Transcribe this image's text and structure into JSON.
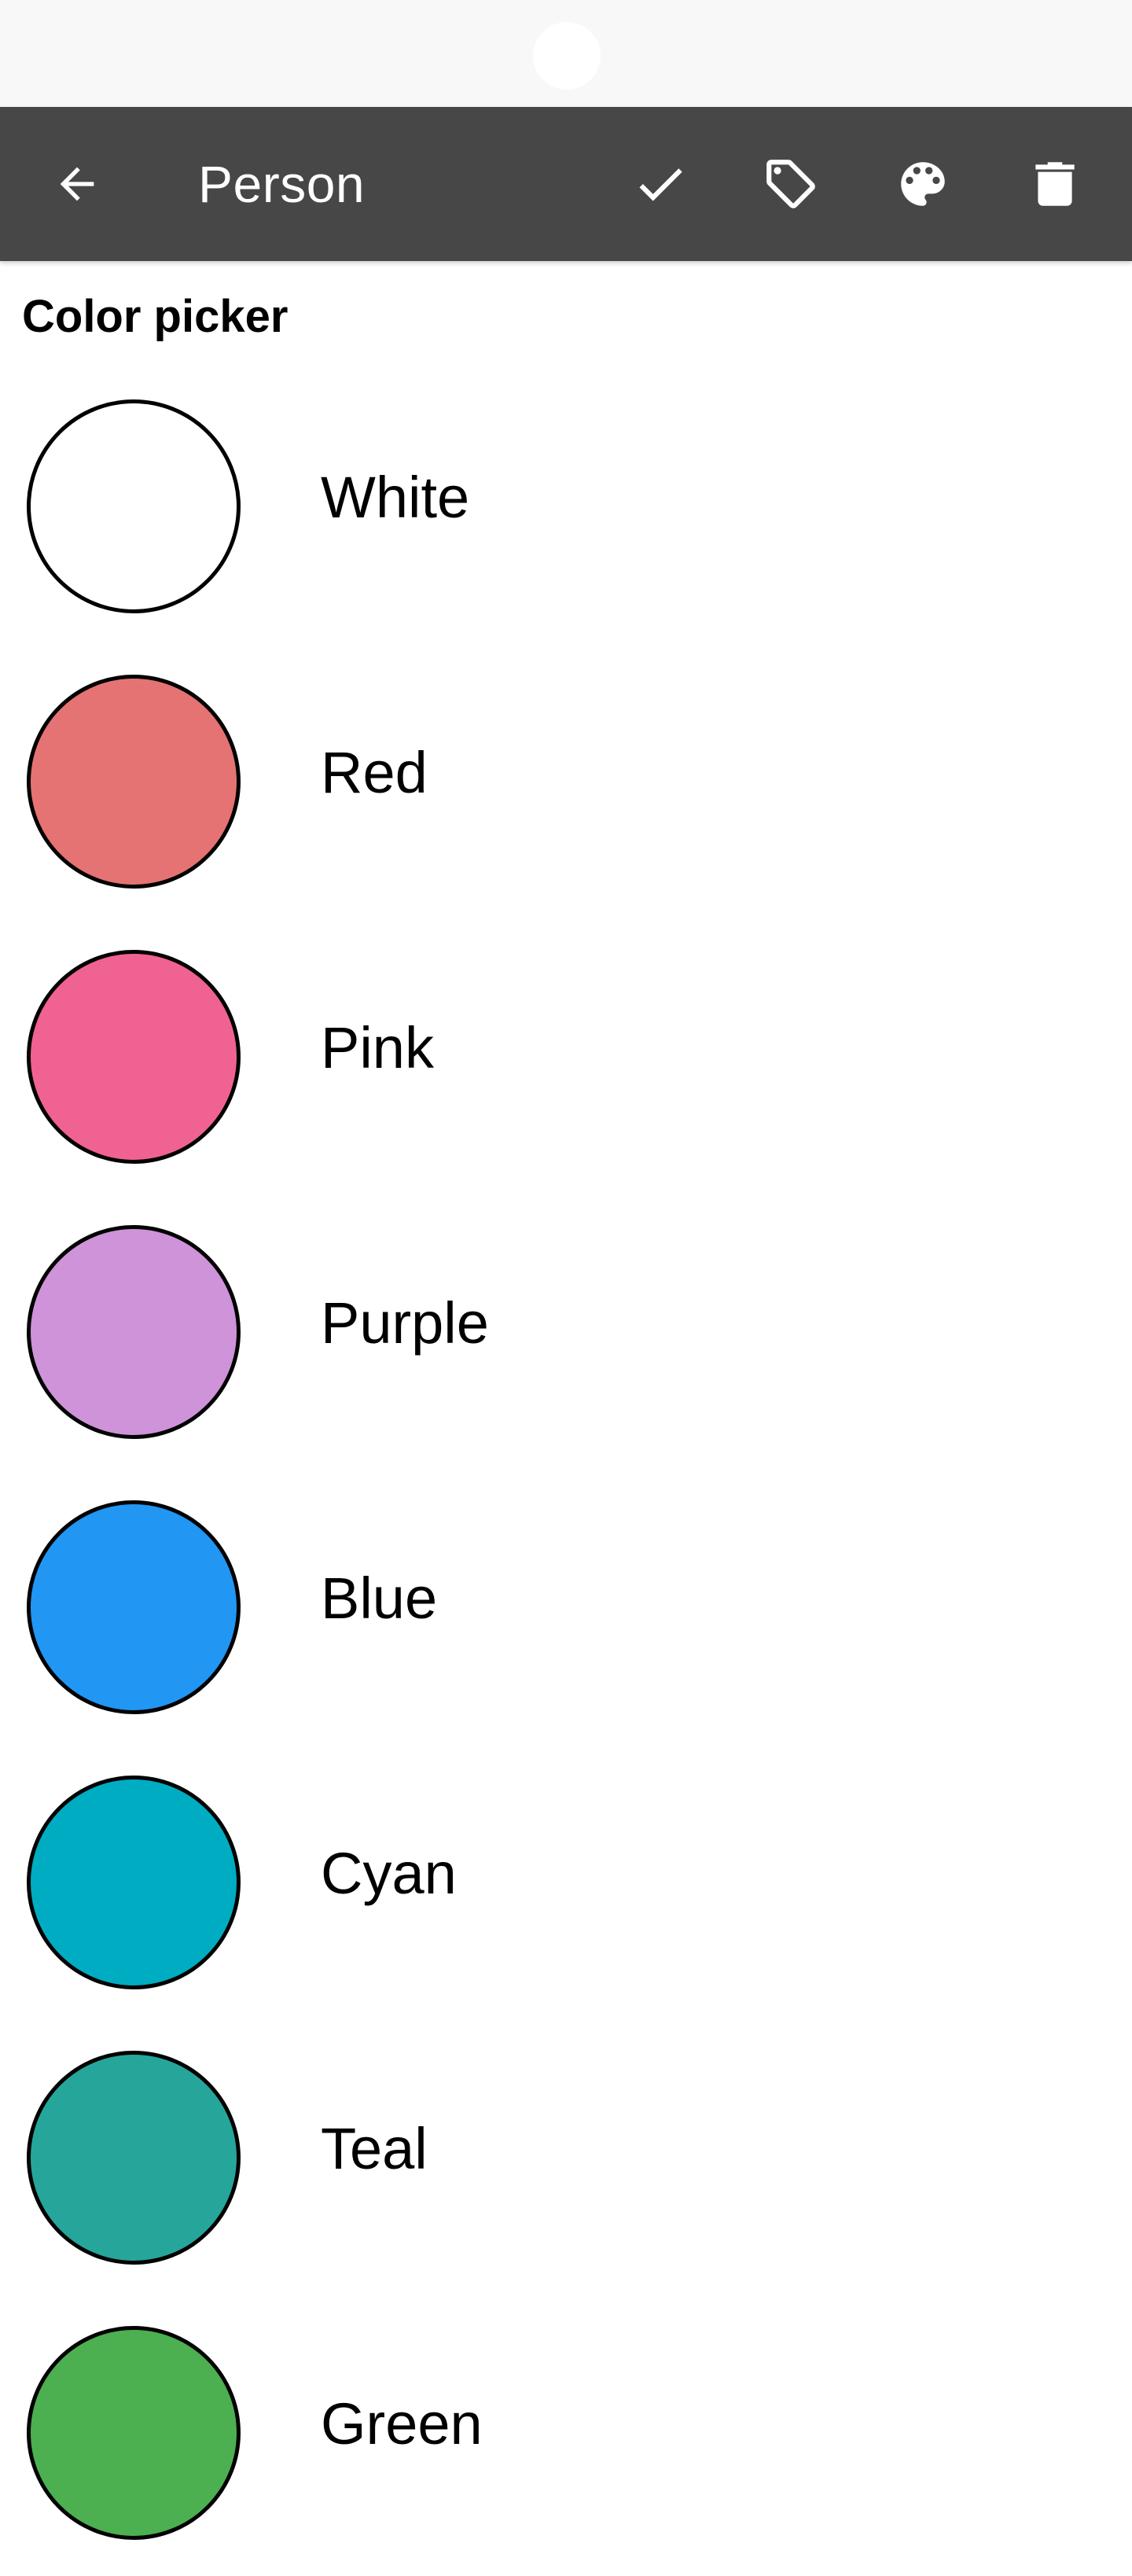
{
  "toolbar": {
    "title": "Person",
    "actions": [
      {
        "name": "back",
        "icon": "arrow-back-icon"
      },
      {
        "name": "save",
        "icon": "check-icon"
      },
      {
        "name": "labels",
        "icon": "tag-icon"
      },
      {
        "name": "color",
        "icon": "palette-icon"
      },
      {
        "name": "delete",
        "icon": "trash-icon"
      }
    ]
  },
  "section_title": "Color picker",
  "colors": [
    {
      "label": "White",
      "hex": "#ffffff"
    },
    {
      "label": "Red",
      "hex": "#e57373"
    },
    {
      "label": "Pink",
      "hex": "#f06292"
    },
    {
      "label": "Purple",
      "hex": "#ce93d8"
    },
    {
      "label": "Blue",
      "hex": "#2196f3"
    },
    {
      "label": "Cyan",
      "hex": "#00acc1"
    },
    {
      "label": "Teal",
      "hex": "#26a69a"
    },
    {
      "label": "Green",
      "hex": "#4caf50"
    }
  ],
  "theme": {
    "toolbar_bg": "#474747",
    "status_bar_bg": "#f8f8f8"
  }
}
